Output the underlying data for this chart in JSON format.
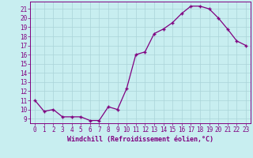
{
  "x": [
    0,
    1,
    2,
    3,
    4,
    5,
    6,
    7,
    8,
    9,
    10,
    11,
    12,
    13,
    14,
    15,
    16,
    17,
    18,
    19,
    20,
    21,
    22,
    23
  ],
  "y": [
    11.0,
    9.8,
    10.0,
    9.2,
    9.2,
    9.2,
    8.8,
    8.8,
    10.3,
    10.0,
    12.3,
    16.0,
    16.3,
    18.3,
    18.8,
    19.5,
    20.5,
    21.3,
    21.3,
    21.0,
    20.0,
    18.8,
    17.5,
    17.0
  ],
  "line_color": "#800080",
  "marker": "+",
  "marker_size": 3.5,
  "marker_lw": 1.0,
  "bg_color": "#c8eef0",
  "grid_color": "#aad4d8",
  "xlabel": "Windchill (Refroidissement éolien,°C)",
  "xlim": [
    -0.5,
    23.5
  ],
  "ylim": [
    8.5,
    21.8
  ],
  "yticks": [
    9,
    10,
    11,
    12,
    13,
    14,
    15,
    16,
    17,
    18,
    19,
    20,
    21
  ],
  "xticks": [
    0,
    1,
    2,
    3,
    4,
    5,
    6,
    7,
    8,
    9,
    10,
    11,
    12,
    13,
    14,
    15,
    16,
    17,
    18,
    19,
    20,
    21,
    22,
    23
  ],
  "tick_fontsize": 5.5,
  "xlabel_fontsize": 6.0,
  "line_width": 0.9
}
